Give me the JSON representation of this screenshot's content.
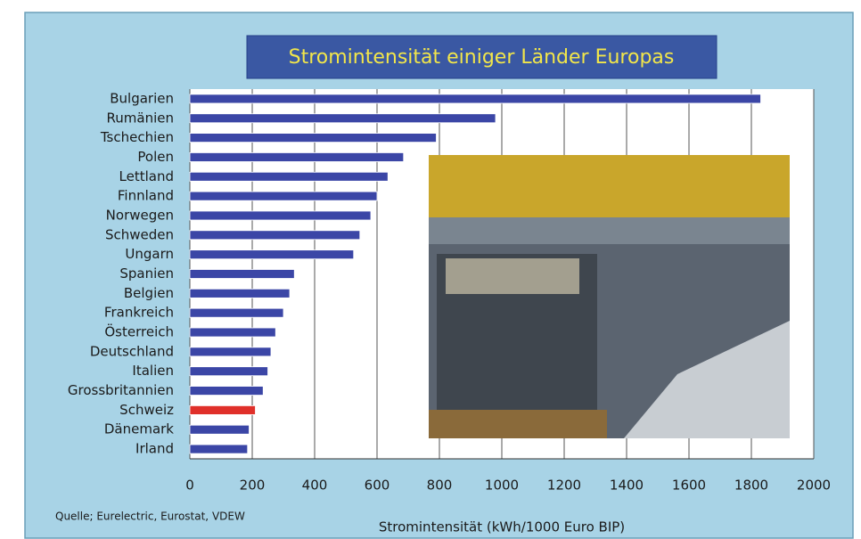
{
  "chart_data": {
    "type": "hbar",
    "title": "Stromintensität einiger Länder Europas",
    "x_label": "Stromintensität (kWh/1000 Euro BIP)",
    "source": "Quelle; Eurelectric, Eurostat, VDEW",
    "categories": [
      "Bulgarien",
      "Rumänien",
      "Tschechien",
      "Polen",
      "Lettland",
      "Finnland",
      "Norwegen",
      "Schweden",
      "Ungarn",
      "Spanien",
      "Belgien",
      "Frankreich",
      "Österreich",
      "Deutschland",
      "Italien",
      "Grossbritannien",
      "Schweiz",
      "Dänemark",
      "Irland"
    ],
    "values": [
      1830,
      980,
      790,
      685,
      635,
      600,
      580,
      545,
      525,
      335,
      320,
      300,
      275,
      260,
      250,
      235,
      210,
      190,
      185
    ],
    "colors": [
      "#3b46a6",
      "#3b46a6",
      "#3b46a6",
      "#3b46a6",
      "#3b46a6",
      "#3b46a6",
      "#3b46a6",
      "#3b46a6",
      "#3b46a6",
      "#3b46a6",
      "#3b46a6",
      "#3b46a6",
      "#3b46a6",
      "#3b46a6",
      "#3b46a6",
      "#3b46a6",
      "#e0302a",
      "#3b46a6",
      "#3b46a6"
    ],
    "xlim": [
      0,
      2000
    ],
    "xticks": [
      0,
      200,
      400,
      600,
      800,
      1000,
      1200,
      1400,
      1600,
      1800,
      2000
    ],
    "grid": true
  }
}
